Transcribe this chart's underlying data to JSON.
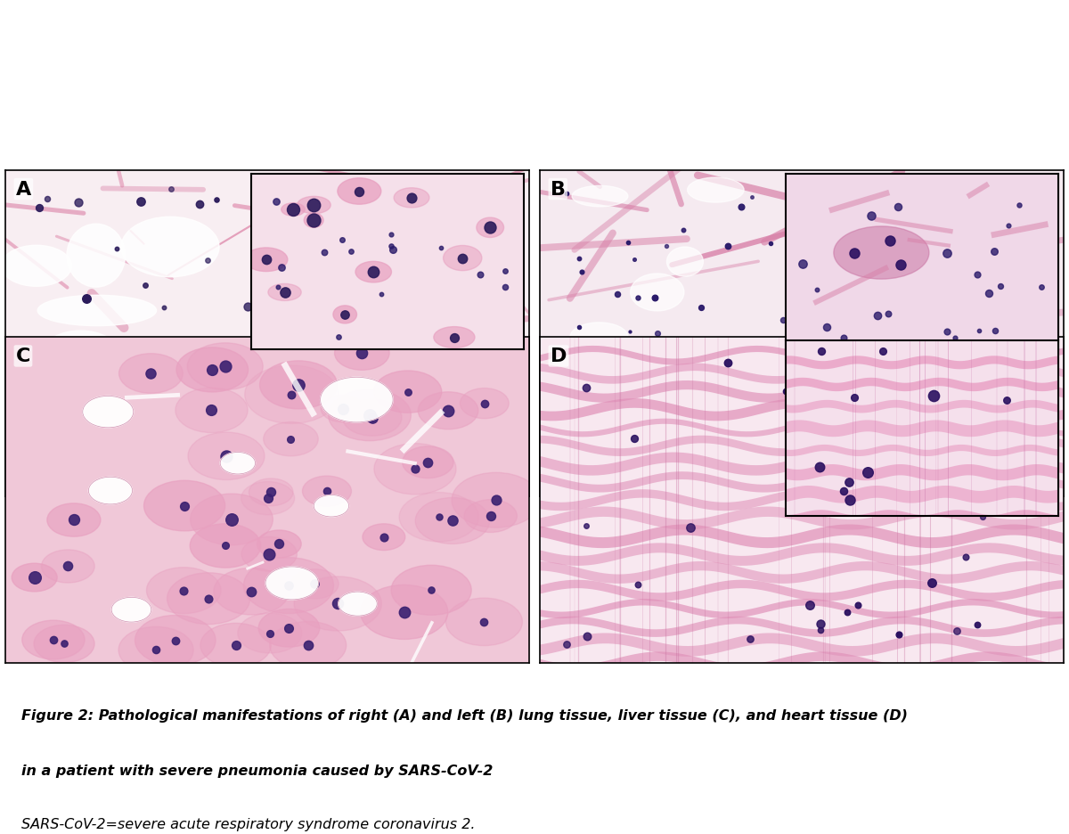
{
  "figure_width": 12.0,
  "figure_height": 9.37,
  "background_color": "#ffffff",
  "panel_labels": [
    "A",
    "B",
    "C",
    "D"
  ],
  "caption_bold": "Figure 2: Pathological manifestations of right (A) and left (B) lung tissue, liver tissue (C), and heart tissue (D)\nin a patient with severe pneumonia caused by SARS-CoV-2",
  "caption_normal": "SARS-CoV-2=severe acute respiratory syndrome coronavirus 2.",
  "caption_fontsize": 11.5,
  "label_fontsize": 14,
  "label_color": "#000000",
  "border_color": "#000000",
  "image_border_color": "#555555",
  "panel_bg_A": "#f5dde8",
  "panel_bg_B": "#f0d8e5",
  "panel_bg_C": "#f2c8d8",
  "panel_bg_D": "#f8e0ea",
  "inset_bg_A": "#f0d0e0",
  "inset_bg_B": "#e8ccd8",
  "inset_bg_C": "#e8b8cc",
  "inset_bg_D": "#f0ccd8",
  "hematoxylin_color": "#4a3a7a",
  "eosin_color": "#e87898",
  "grid_rows": 2,
  "grid_cols": 2
}
